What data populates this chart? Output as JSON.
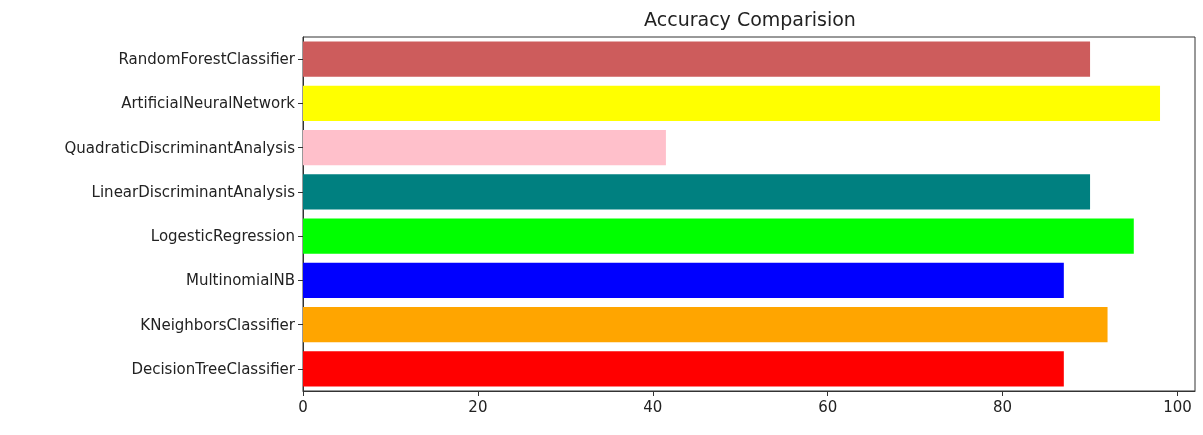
{
  "chart_data": {
    "type": "bar",
    "orientation": "horizontal",
    "title": "Accuracy Comparision",
    "categories": [
      "RandomForestClassifier",
      "ArtificialNeuralNetwork",
      "QuadraticDiscriminantAnalysis",
      "LinearDiscriminantAnalysis",
      "LogesticRegression",
      "MultinomialNB",
      "KNeighborsClassifier",
      "DecisionTreeClassifier"
    ],
    "values": [
      90,
      98,
      41.5,
      90,
      95,
      87,
      92,
      87
    ],
    "colors": [
      "#cd5c5c",
      "#ffff00",
      "#ffc0cb",
      "#008080",
      "#00ff00",
      "#0000ff",
      "#ffa500",
      "#ff0000"
    ],
    "xlim": [
      0,
      102
    ],
    "xticks": [
      0,
      20,
      40,
      60,
      80,
      100
    ],
    "grid": false
  }
}
